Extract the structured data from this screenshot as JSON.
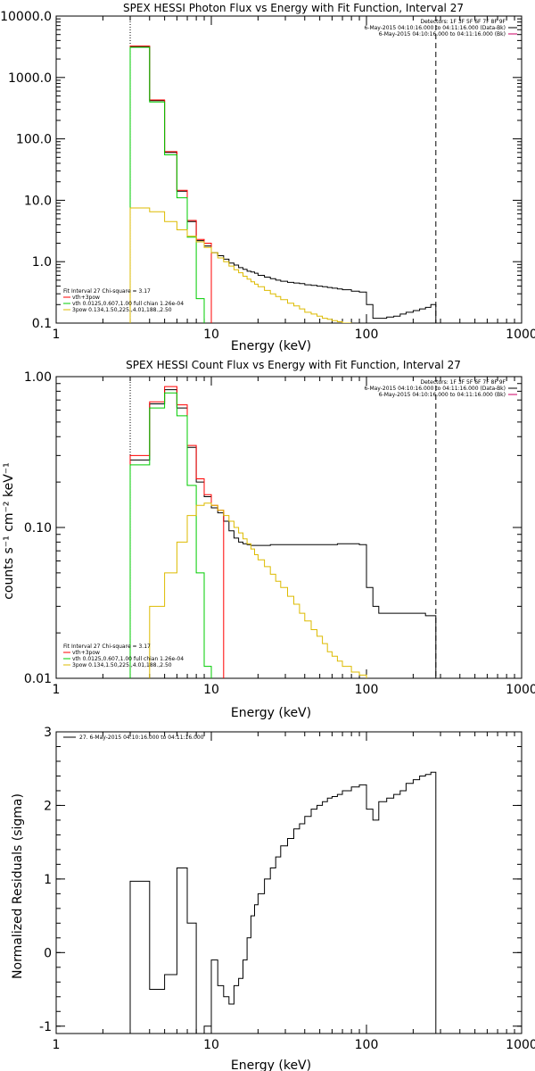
{
  "charts": [
    {
      "title": "SPEX HESSI Photon Flux vs Energy with Fit Function, Interval 27",
      "xlabel": "Energy (keV)",
      "ylabel": "",
      "xlim": [
        1,
        1000
      ],
      "ylim": [
        0.1,
        10000
      ],
      "xlog": true,
      "ylog": true,
      "xticks": [
        {
          "v": 1,
          "t": "1"
        },
        {
          "v": 10,
          "t": "10"
        },
        {
          "v": 100,
          "t": "100"
        },
        {
          "v": 1000,
          "t": "1000"
        }
      ],
      "yticks": [
        {
          "v": 0.1,
          "t": "0.1"
        },
        {
          "v": 1,
          "t": "1.0"
        },
        {
          "v": 10,
          "t": "10.0"
        },
        {
          "v": 100,
          "t": "100.0"
        },
        {
          "v": 1000,
          "t": "1000.0"
        },
        {
          "v": 10000,
          "t": "10000.0"
        }
      ],
      "dotted_x": 3,
      "dashed_x": 280,
      "info_top": [
        {
          "text": "Detectors: 1F 3F 5F 6F 7F 8F 9F",
          "color": ""
        },
        {
          "text": "6-May-2015 04:10:16.000 to 04:11:16.000 (Data-Bk)",
          "color": "#000000"
        },
        {
          "text": "6-May-2015 04:10:16.000 to 04:11:16.000 (Bk)",
          "color": "#cc0066"
        }
      ],
      "info_bottom": [
        {
          "text": "Fit Interval 27    Chi-square = 3.17",
          "color": ""
        },
        {
          "text": "vth+3pow",
          "color": "#ff0000"
        },
        {
          "text": "vth 0.0125,0.607,1.00  full chian 1.26e-04",
          "color": "#00cc00"
        },
        {
          "text": "3pow 0.134,1.50,225.,4.01,188.,2.50",
          "color": "#ddbb00"
        }
      ],
      "series": [
        {
          "name": "Data-Bk",
          "color": "#000000",
          "edges": [
            3,
            4,
            5,
            6,
            7,
            8,
            9,
            10,
            11,
            12,
            13,
            14,
            15,
            16,
            17,
            18,
            19,
            20,
            22,
            24,
            26,
            28,
            31,
            34,
            37,
            40,
            44,
            48,
            52,
            56,
            60,
            65,
            70,
            80,
            90,
            100,
            110,
            120,
            135,
            150,
            165,
            180,
            200,
            220,
            240,
            260,
            280
          ],
          "values": [
            3200,
            420,
            60,
            14,
            4.5,
            2.2,
            1.8,
            1.4,
            1.25,
            1.1,
            0.95,
            0.88,
            0.8,
            0.75,
            0.7,
            0.68,
            0.65,
            0.6,
            0.56,
            0.53,
            0.5,
            0.48,
            0.46,
            0.45,
            0.44,
            0.42,
            0.41,
            0.4,
            0.39,
            0.38,
            0.37,
            0.36,
            0.35,
            0.33,
            0.32,
            0.2,
            0.12,
            0.12,
            0.125,
            0.13,
            0.14,
            0.15,
            0.16,
            0.17,
            0.18,
            0.2
          ]
        },
        {
          "name": "vth+3pow",
          "color": "#ff0000",
          "edges": [
            3,
            4,
            5,
            6,
            7,
            8,
            9,
            10
          ],
          "values": [
            3250,
            430,
            62,
            14.5,
            4.7,
            2.3,
            2.0
          ]
        },
        {
          "name": "vth",
          "color": "#00cc00",
          "edges": [
            3,
            4,
            5,
            6,
            7,
            8,
            9
          ],
          "values": [
            3100,
            400,
            55,
            11,
            2.5,
            0.25
          ]
        },
        {
          "name": "3pow",
          "color": "#ddbb00",
          "edges": [
            3,
            4,
            5,
            6,
            7,
            8,
            9,
            10,
            11,
            12,
            13,
            14,
            15,
            16,
            17,
            18,
            19,
            20,
            22,
            24,
            26,
            28,
            31,
            34,
            37,
            40,
            44,
            48,
            52,
            56,
            60,
            65,
            70,
            80
          ],
          "values": [
            7.5,
            6.5,
            4.5,
            3.3,
            2.6,
            2.1,
            1.7,
            1.4,
            1.15,
            1.0,
            0.85,
            0.74,
            0.66,
            0.58,
            0.52,
            0.47,
            0.43,
            0.39,
            0.34,
            0.3,
            0.27,
            0.24,
            0.21,
            0.19,
            0.17,
            0.15,
            0.14,
            0.13,
            0.12,
            0.115,
            0.11,
            0.105,
            0.1
          ]
        }
      ]
    },
    {
      "title": "SPEX HESSI Count Flux vs Energy with Fit Function, Interval 27",
      "xlabel": "Energy (keV)",
      "ylabel": "counts s⁻¹ cm⁻² keV⁻¹",
      "xlim": [
        1,
        1000
      ],
      "ylim": [
        0.01,
        1
      ],
      "xlog": true,
      "ylog": true,
      "xticks": [
        {
          "v": 1,
          "t": "1"
        },
        {
          "v": 10,
          "t": "10"
        },
        {
          "v": 100,
          "t": "100"
        },
        {
          "v": 1000,
          "t": "1000"
        }
      ],
      "yticks": [
        {
          "v": 0.01,
          "t": "0.01"
        },
        {
          "v": 0.1,
          "t": "0.10"
        },
        {
          "v": 1,
          "t": "1.00"
        }
      ],
      "dotted_x": 3,
      "dashed_x": 280,
      "info_top": [
        {
          "text": "Detectors: 1F 3F 5F 6F 7F 8F 9F",
          "color": ""
        },
        {
          "text": "6-May-2015 04:10:16.000 to 04:11:16.000 (Data-Bk)",
          "color": "#000000"
        },
        {
          "text": "6-May-2015 04:10:16.000 to 04:11:16.000 (Bk)",
          "color": "#cc0066"
        }
      ],
      "info_bottom": [
        {
          "text": "Fit Interval 27    Chi-square = 3.17",
          "color": ""
        },
        {
          "text": "vth+3pow",
          "color": "#ff0000"
        },
        {
          "text": "vth 0.0125,0.607,1.00  full chian 1.26e-04",
          "color": "#00cc00"
        },
        {
          "text": "3pow 0.134,1.50,225.,4.01,188.,2.50",
          "color": "#ddbb00"
        }
      ],
      "series": [
        {
          "name": "Data-Bk",
          "color": "#000000",
          "edges": [
            3,
            4,
            5,
            6,
            7,
            8,
            9,
            10,
            11,
            12,
            13,
            14,
            15,
            16,
            17,
            18,
            19,
            20,
            22,
            24,
            26,
            28,
            31,
            34,
            37,
            40,
            44,
            48,
            52,
            56,
            60,
            65,
            70,
            80,
            90,
            100,
            110,
            120,
            135,
            150,
            165,
            180,
            200,
            220,
            240,
            260,
            280
          ],
          "values": [
            0.28,
            0.66,
            0.82,
            0.62,
            0.34,
            0.2,
            0.16,
            0.135,
            0.125,
            0.11,
            0.095,
            0.085,
            0.08,
            0.078,
            0.077,
            0.076,
            0.076,
            0.076,
            0.076,
            0.077,
            0.077,
            0.077,
            0.077,
            0.077,
            0.077,
            0.077,
            0.077,
            0.077,
            0.077,
            0.077,
            0.077,
            0.078,
            0.078,
            0.078,
            0.077,
            0.04,
            0.03,
            0.027,
            0.027,
            0.027,
            0.027,
            0.027,
            0.027,
            0.027,
            0.026,
            0.026
          ]
        },
        {
          "name": "vth+3pow",
          "color": "#ff0000",
          "edges": [
            3,
            4,
            5,
            6,
            7,
            8,
            9,
            10,
            11,
            12
          ],
          "values": [
            0.3,
            0.68,
            0.86,
            0.65,
            0.35,
            0.21,
            0.165,
            0.14,
            0.13
          ]
        },
        {
          "name": "vth",
          "color": "#00cc00",
          "edges": [
            3,
            4,
            5,
            6,
            7,
            8,
            9,
            10
          ],
          "values": [
            0.26,
            0.62,
            0.78,
            0.55,
            0.19,
            0.05,
            0.012
          ]
        },
        {
          "name": "3pow",
          "color": "#ddbb00",
          "edges": [
            4,
            5,
            6,
            7,
            8,
            9,
            10,
            11,
            12,
            13,
            14,
            15,
            16,
            17,
            18,
            19,
            20,
            22,
            24,
            26,
            28,
            31,
            34,
            37,
            40,
            44,
            48,
            52,
            56,
            60,
            65,
            70,
            80,
            90,
            100
          ],
          "values": [
            0.03,
            0.05,
            0.08,
            0.12,
            0.14,
            0.145,
            0.14,
            0.13,
            0.12,
            0.11,
            0.1,
            0.092,
            0.084,
            0.078,
            0.072,
            0.066,
            0.061,
            0.055,
            0.049,
            0.044,
            0.04,
            0.035,
            0.031,
            0.027,
            0.024,
            0.021,
            0.019,
            0.017,
            0.015,
            0.014,
            0.013,
            0.012,
            0.011,
            0.0105
          ]
        }
      ]
    },
    {
      "title": "",
      "xlabel": "Energy (keV)",
      "ylabel": "Normalized Residuals (sigma)",
      "xlim": [
        1,
        1000
      ],
      "ylim": [
        -1.1,
        3
      ],
      "xlog": true,
      "ylog": false,
      "xticks": [
        {
          "v": 1,
          "t": "1"
        },
        {
          "v": 10,
          "t": "10"
        },
        {
          "v": 100,
          "t": "100"
        },
        {
          "v": 1000,
          "t": "1000"
        }
      ],
      "yticks": [
        {
          "v": -1,
          "t": "-1"
        },
        {
          "v": 0,
          "t": "0"
        },
        {
          "v": 1,
          "t": "1"
        },
        {
          "v": 2,
          "t": "2"
        },
        {
          "v": 3,
          "t": "3"
        }
      ],
      "info_top": [
        {
          "text": "27.  6-May-2015 04:10:16.000 to 04:11:16.000",
          "color": "#000000",
          "left": true
        }
      ],
      "info_bottom": [],
      "series": [
        {
          "name": "27.",
          "color": "#000000",
          "edges": [
            3,
            4,
            5,
            6,
            7,
            8,
            9,
            10,
            11,
            12,
            13,
            14,
            15,
            16,
            17,
            18,
            19,
            20,
            22,
            24,
            26,
            28,
            31,
            34,
            37,
            40,
            44,
            48,
            52,
            56,
            60,
            65,
            70,
            80,
            90,
            100,
            110,
            120,
            135,
            150,
            165,
            180,
            200,
            220,
            240,
            260,
            280
          ],
          "values": [
            0.97,
            -0.5,
            -0.3,
            1.15,
            0.4,
            -1.15,
            -1.0,
            -0.1,
            -0.45,
            -0.6,
            -0.7,
            -0.45,
            -0.35,
            -0.1,
            0.2,
            0.5,
            0.65,
            0.8,
            1.0,
            1.15,
            1.3,
            1.45,
            1.55,
            1.68,
            1.75,
            1.85,
            1.95,
            2.0,
            2.05,
            2.1,
            2.12,
            2.15,
            2.2,
            2.25,
            2.28,
            1.95,
            1.8,
            2.05,
            2.1,
            2.15,
            2.2,
            2.3,
            2.35,
            2.4,
            2.42,
            2.45
          ]
        }
      ]
    }
  ]
}
